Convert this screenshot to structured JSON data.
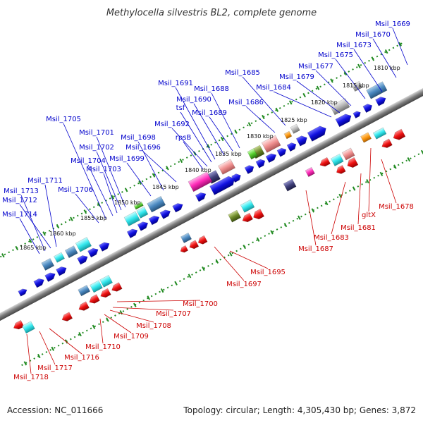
{
  "title": "Methylocella silvestris BL2, complete genome",
  "accession": "Accession: NC_011666",
  "summary": "Topology: circular; Length: 4,305,430 bp; Genes: 3,872",
  "colors": {
    "backbone": "#8a8a8a",
    "tick": "#228b22",
    "forward_label": "#0000cc",
    "reverse_label": "#cc0000",
    "forward_gene": "#1010e0",
    "reverse_gene": "#ee1111"
  },
  "kbp_ticks": [
    {
      "label": "1810 kbp"
    },
    {
      "label": "1815 kbp"
    },
    {
      "label": "1820 kbp"
    },
    {
      "label": "1825 kbp"
    },
    {
      "label": "1830 kbp"
    },
    {
      "label": "1835 kbp"
    },
    {
      "label": "1840 kbp"
    },
    {
      "label": "1845 kbp"
    },
    {
      "label": "1850 kbp"
    },
    {
      "label": "1855 kbp"
    },
    {
      "label": "1860 kbp"
    },
    {
      "label": "1865 kbp"
    }
  ],
  "forward_labels": [
    "Msil_1669",
    "Msil_1670",
    "Msil_1673",
    "Msil_1675",
    "Msil_1677",
    "Msil_1679",
    "Msil_1684",
    "Msil_1685",
    "Msil_1686",
    "Msil_1688",
    "Msil_1689",
    "Msil_1690",
    "Msil_1691",
    "tsf",
    "Msil_1692",
    "rpsB",
    "Msil_1696",
    "Msil_1698",
    "Msil_1699",
    "Msil_1701",
    "Msil_1702",
    "Msil_1703",
    "Msil_1704",
    "Msil_1705",
    "Msil_1706",
    "Msil_1711",
    "Msil_1712",
    "Msil_1713",
    "Msil_1714"
  ],
  "reverse_labels": [
    "Msil_1678",
    "gltX",
    "Msil_1681",
    "Msil_1683",
    "Msil_1687",
    "Msil_1695",
    "Msil_1697",
    "Msil_1700",
    "Msil_1707",
    "Msil_1708",
    "Msil_1709",
    "Msil_1710",
    "Msil_1716",
    "Msil_1717",
    "Msil_1718"
  ]
}
